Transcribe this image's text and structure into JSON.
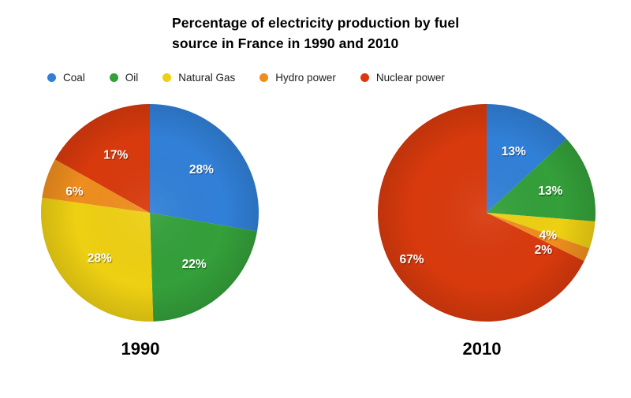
{
  "title": "Percentage of electricity production by fuel source in France in 1990 and 2010",
  "title_lines": [
    "Percentage of electricity production by fuel",
    "source in France in 1990 and 2010"
  ],
  "palette": [
    "#3180d8",
    "#34a03a",
    "#eed013",
    "#ef8e1f",
    "#d93a0d"
  ],
  "legend": {
    "position": "top",
    "items": [
      "Coal",
      "Oil",
      "Natural Gas",
      "Hydro power",
      "Nuclear power"
    ]
  },
  "chart_data": [
    {
      "type": "pie",
      "title": "1990",
      "categories": [
        "Coal",
        "Oil",
        "Natural Gas",
        "Hydro power",
        "Nuclear power"
      ],
      "values": [
        28,
        22,
        28,
        6,
        17
      ],
      "labels": [
        "28%",
        "22%",
        "28%",
        "6%",
        "17%"
      ],
      "unit": "%",
      "start_angle_deg": 0,
      "direction": "clockwise",
      "label_color": "#ffffff",
      "label_overrides": {
        "3": {
          "theta": 286,
          "rf": 0.72
        }
      }
    },
    {
      "type": "pie",
      "title": "2010",
      "categories": [
        "Coal",
        "Oil",
        "Natural Gas",
        "Hydro power",
        "Nuclear power"
      ],
      "values": [
        13,
        13,
        4,
        2,
        67
      ],
      "labels": [
        "13%",
        "13%",
        "4%",
        "2%",
        "67%"
      ],
      "unit": "%",
      "start_angle_deg": 0,
      "direction": "clockwise",
      "label_color": "#ffffff",
      "label_overrides": {
        "2": {
          "theta": 110,
          "rf": 0.6
        },
        "3": {
          "theta": 123,
          "rf": 0.62
        },
        "4": {
          "rf": 0.81
        }
      }
    }
  ]
}
